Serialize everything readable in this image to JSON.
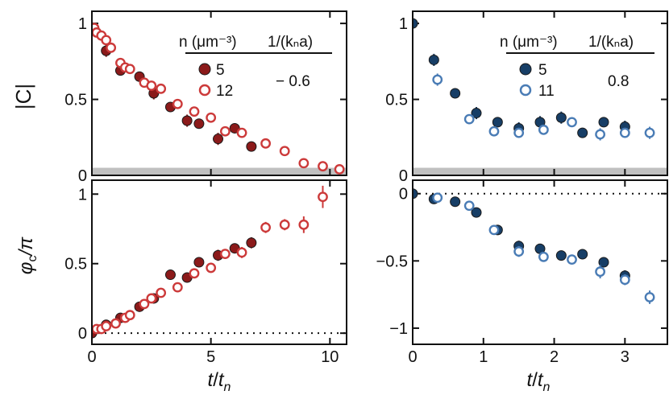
{
  "figure": {
    "xlabel_main": "t",
    "xlabel_sub": "n",
    "ylabel_top": "|C|",
    "ylabel_bottom_main": "φ",
    "ylabel_bottom_sub": "c",
    "ylabel_bottom_tail": "/π"
  },
  "chart_data": [
    {
      "id": "top-left",
      "type": "scatter",
      "ylabel": "|C|",
      "xlim": [
        0,
        10.7
      ],
      "ylim": [
        0,
        1.08
      ],
      "xticks": [
        0,
        5,
        10
      ],
      "yticks": [
        0,
        0.5,
        1
      ],
      "ytick_labels": [
        "0",
        "0.5",
        "1"
      ],
      "show_xtick_labels": false,
      "noise_band": [
        0,
        0.05
      ],
      "legend": {
        "title_n": "n (μm⁻³)",
        "title_inv": "1/(kₙa)",
        "entries": [
          {
            "n": "5",
            "style": "filled"
          },
          {
            "n": "12",
            "style": "open"
          }
        ],
        "inv_value": "− 0.6"
      },
      "series": [
        {
          "name": "5",
          "style": "filled",
          "color": "#8b1a1a",
          "x": [
            0,
            0.6,
            1.2,
            2.0,
            2.6,
            3.3,
            4.0,
            4.5,
            5.3,
            6.0,
            6.7
          ],
          "y": [
            0.97,
            0.82,
            0.69,
            0.65,
            0.54,
            0.45,
            0.36,
            0.34,
            0.24,
            0.31,
            0.19
          ],
          "err": [
            0.02,
            0.04,
            0.03,
            0.03,
            0.04,
            0.03,
            0.04,
            0.03,
            0.04,
            0.03,
            0.03
          ]
        },
        {
          "name": "12",
          "style": "open",
          "color": "#cc3a3a",
          "x": [
            0.1,
            0.2,
            0.4,
            0.6,
            0.8,
            1.2,
            1.4,
            1.6,
            2.2,
            2.5,
            2.9,
            3.6,
            4.3,
            5.0,
            5.6,
            6.3,
            7.3,
            8.1,
            8.9,
            9.7,
            10.4
          ],
          "y": [
            0.97,
            0.94,
            0.92,
            0.89,
            0.84,
            0.74,
            0.71,
            0.7,
            0.61,
            0.59,
            0.57,
            0.47,
            0.42,
            0.38,
            0.29,
            0.28,
            0.21,
            0.16,
            0.08,
            0.06,
            0.04
          ],
          "err": [
            0.02,
            0.02,
            0.02,
            0.02,
            0.02,
            0.02,
            0.02,
            0.02,
            0.02,
            0.02,
            0.02,
            0.02,
            0.02,
            0.02,
            0.02,
            0.02,
            0.02,
            0.02,
            0.02,
            0.02,
            0.02
          ]
        }
      ]
    },
    {
      "id": "top-right",
      "type": "scatter",
      "xlim": [
        0,
        3.6
      ],
      "ylim": [
        0,
        1.08
      ],
      "xticks": [
        0,
        1,
        2,
        3
      ],
      "yticks": [
        0,
        0.5,
        1
      ],
      "ytick_labels": [
        "0",
        "0.5",
        "1"
      ],
      "show_xtick_labels": false,
      "noise_band": [
        0,
        0.05
      ],
      "legend": {
        "title_n": "n (μm⁻³)",
        "title_inv": "1/(kₙa)",
        "entries": [
          {
            "n": "5",
            "style": "filled"
          },
          {
            "n": "11",
            "style": "open"
          }
        ],
        "inv_value": "0.8"
      },
      "series": [
        {
          "name": "5",
          "style": "filled",
          "color": "#173e66",
          "x": [
            0,
            0.3,
            0.6,
            0.9,
            1.2,
            1.5,
            1.8,
            2.1,
            2.4,
            2.7,
            3.0
          ],
          "y": [
            1.0,
            0.76,
            0.54,
            0.41,
            0.35,
            0.31,
            0.35,
            0.38,
            0.28,
            0.35,
            0.32
          ],
          "err": [
            0.01,
            0.04,
            0.03,
            0.04,
            0.03,
            0.04,
            0.04,
            0.04,
            0.03,
            0.03,
            0.04
          ]
        },
        {
          "name": "11",
          "style": "open",
          "color": "#4a7cb5",
          "x": [
            0.35,
            0.8,
            1.15,
            1.5,
            1.85,
            2.25,
            2.65,
            3.0,
            3.35
          ],
          "y": [
            0.63,
            0.37,
            0.29,
            0.28,
            0.3,
            0.35,
            0.27,
            0.28,
            0.28
          ],
          "err": [
            0.04,
            0.03,
            0.03,
            0.03,
            0.03,
            0.03,
            0.04,
            0.03,
            0.04
          ]
        }
      ]
    },
    {
      "id": "bottom-left",
      "type": "scatter",
      "ylabel": "φc/π",
      "xlim": [
        0,
        10.7
      ],
      "ylim": [
        -0.08,
        1.1
      ],
      "xticks": [
        0,
        5,
        10
      ],
      "xtick_labels": [
        "0",
        "5",
        "10"
      ],
      "yticks": [
        0,
        0.5,
        1
      ],
      "ytick_labels": [
        "0",
        "0.5",
        "1"
      ],
      "show_xtick_labels": true,
      "zero_line": true,
      "series": [
        {
          "name": "5",
          "style": "filled",
          "color": "#8b1a1a",
          "x": [
            0,
            0.6,
            1.2,
            2.0,
            2.6,
            3.3,
            4.0,
            4.5,
            5.3,
            6.0,
            6.7
          ],
          "y": [
            0,
            0.06,
            0.11,
            0.19,
            0.25,
            0.42,
            0.4,
            0.51,
            0.56,
            0.61,
            0.65
          ],
          "err": [
            0.01,
            0.02,
            0.02,
            0.02,
            0.02,
            0.02,
            0.02,
            0.03,
            0.04,
            0.03,
            0.04
          ]
        },
        {
          "name": "12",
          "style": "open",
          "color": "#cc3a3a",
          "x": [
            0.2,
            0.4,
            0.6,
            1.0,
            1.4,
            1.6,
            2.2,
            2.5,
            2.9,
            3.6,
            4.3,
            5.0,
            5.6,
            6.3,
            7.3,
            8.1,
            8.9,
            9.7
          ],
          "y": [
            0.03,
            0.03,
            0.05,
            0.07,
            0.11,
            0.13,
            0.21,
            0.25,
            0.29,
            0.33,
            0.43,
            0.47,
            0.57,
            0.58,
            0.76,
            0.78,
            0.78,
            0.98
          ],
          "err": [
            0.02,
            0.02,
            0.02,
            0.02,
            0.02,
            0.02,
            0.02,
            0.02,
            0.02,
            0.02,
            0.03,
            0.03,
            0.03,
            0.04,
            0.04,
            0.04,
            0.06,
            0.08
          ]
        }
      ]
    },
    {
      "id": "bottom-right",
      "type": "scatter",
      "xlim": [
        0,
        3.6
      ],
      "ylim": [
        -1.12,
        0.1
      ],
      "xticks": [
        0,
        1,
        2,
        3
      ],
      "xtick_labels": [
        "0",
        "1",
        "2",
        "3"
      ],
      "yticks": [
        0,
        -0.5,
        -1
      ],
      "ytick_labels": [
        "0",
        "−0.5",
        "−1"
      ],
      "show_xtick_labels": true,
      "zero_line": true,
      "series": [
        {
          "name": "5",
          "style": "filled",
          "color": "#173e66",
          "x": [
            0,
            0.3,
            0.6,
            0.9,
            1.2,
            1.5,
            1.8,
            2.1,
            2.4,
            2.7,
            3.0
          ],
          "y": [
            0,
            -0.04,
            -0.06,
            -0.14,
            -0.27,
            -0.39,
            -0.41,
            -0.46,
            -0.45,
            -0.51,
            -0.61
          ],
          "err": [
            0.01,
            0.02,
            0.02,
            0.02,
            0.03,
            0.04,
            0.03,
            0.03,
            0.03,
            0.03,
            0.04
          ]
        },
        {
          "name": "11",
          "style": "open",
          "color": "#4a7cb5",
          "x": [
            0.35,
            0.8,
            1.15,
            1.5,
            1.85,
            2.25,
            2.65,
            3.0,
            3.35
          ],
          "y": [
            -0.03,
            -0.09,
            -0.27,
            -0.43,
            -0.47,
            -0.49,
            -0.58,
            -0.64,
            -0.77
          ],
          "err": [
            0.02,
            0.02,
            0.03,
            0.04,
            0.03,
            0.03,
            0.05,
            0.04,
            0.05
          ]
        }
      ]
    }
  ]
}
